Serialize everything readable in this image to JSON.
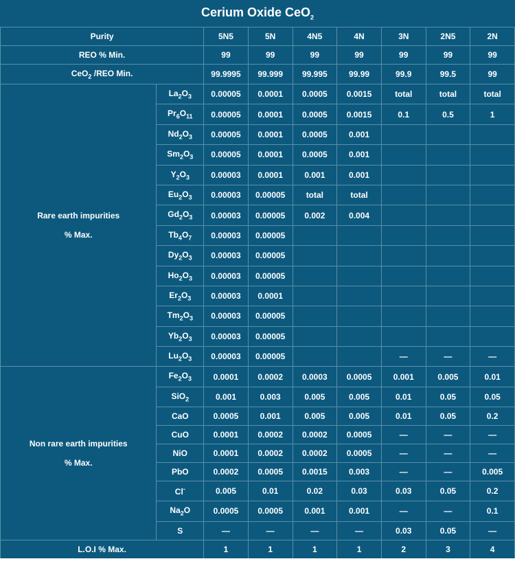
{
  "title_pre": "Cerium Oxide   CeO",
  "title_sub": "2",
  "headers": {
    "purity": "Purity",
    "reo": "REO % Min.",
    "ceo_reo_pre": "CeO",
    "ceo_reo_sub": "2",
    "ceo_reo_post": " /REO Min.",
    "rare": "Rare earth impurities",
    "rare2": "% Max.",
    "nonrare": "Non rare earth impurities",
    "nonrare2": "% Max.",
    "loi": "L.O.I % Max."
  },
  "grades": [
    "5N5",
    "5N",
    "4N5",
    "4N",
    "3N",
    "2N5",
    "2N"
  ],
  "reo_row": [
    "99",
    "99",
    "99",
    "99",
    "99",
    "99",
    "99"
  ],
  "ceo_row": [
    "99.9995",
    "99.999",
    "99.995",
    "99.99",
    "99.9",
    "99.5",
    "99"
  ],
  "rare_rows": [
    {
      "f": "La",
      "s": "2",
      "f2": "O",
      "s2": "3",
      "v": [
        "0.00005",
        "0.0001",
        "0.0005",
        "0.0015",
        "total",
        "total",
        "total"
      ]
    },
    {
      "f": "Pr",
      "s": "6",
      "f2": "O",
      "s2": "11",
      "v": [
        "0.00005",
        "0.0001",
        "0.0005",
        "0.0015",
        "0.1",
        "0.5",
        "1"
      ]
    },
    {
      "f": "Nd",
      "s": "2",
      "f2": "O",
      "s2": "3",
      "v": [
        "0.00005",
        "0.0001",
        "0.0005",
        "0.001",
        "",
        "",
        ""
      ]
    },
    {
      "f": "Sm",
      "s": "2",
      "f2": "O",
      "s2": "3",
      "v": [
        "0.00005",
        "0.0001",
        "0.0005",
        "0.001",
        "",
        "",
        ""
      ]
    },
    {
      "f": "Y",
      "s": "2",
      "f2": "O",
      "s2": "3",
      "v": [
        "0.00003",
        "0.0001",
        "0.001",
        "0.001",
        "",
        "",
        ""
      ]
    },
    {
      "f": "Eu",
      "s": "2",
      "f2": "O",
      "s2": "3",
      "v": [
        "0.00003",
        "0.00005",
        "total",
        "total",
        "",
        "",
        ""
      ]
    },
    {
      "f": "Gd",
      "s": "2",
      "f2": "O",
      "s2": "3",
      "v": [
        "0.00003",
        "0.00005",
        "0.002",
        "0.004",
        "",
        "",
        ""
      ]
    },
    {
      "f": "Tb",
      "s": "4",
      "f2": "O",
      "s2": "7",
      "v": [
        "0.00003",
        "0.00005",
        "",
        "",
        "",
        "",
        ""
      ]
    },
    {
      "f": "Dy",
      "s": "2",
      "f2": "O",
      "s2": "3",
      "v": [
        "0.00003",
        "0.00005",
        "",
        "",
        "",
        "",
        ""
      ]
    },
    {
      "f": "Ho",
      "s": "2",
      "f2": "O",
      "s2": "3",
      "v": [
        "0.00003",
        "0.00005",
        "",
        "",
        "",
        "",
        ""
      ]
    },
    {
      "f": "Er",
      "s": "2",
      "f2": "O",
      "s2": "3",
      "v": [
        "0.00003",
        "0.0001",
        "",
        "",
        "",
        "",
        ""
      ]
    },
    {
      "f": "Tm",
      "s": "2",
      "f2": "O",
      "s2": "3",
      "v": [
        "0.00003",
        "0.00005",
        "",
        "",
        "",
        "",
        ""
      ]
    },
    {
      "f": "Yb",
      "s": "2",
      "f2": "O",
      "s2": "3",
      "v": [
        "0.00003",
        "0.00005",
        "",
        "",
        "",
        "",
        ""
      ]
    },
    {
      "f": "Lu",
      "s": "2",
      "f2": "O",
      "s2": "3",
      "v": [
        "0.00003",
        "0.00005",
        "",
        "",
        "—",
        "—",
        "—"
      ]
    }
  ],
  "nonrare_rows": [
    {
      "f": "Fe",
      "s": "2",
      "f2": "O",
      "s2": "3",
      "v": [
        "0.0001",
        "0.0002",
        "0.0003",
        "0.0005",
        "0.001",
        "0.005",
        "0.01"
      ]
    },
    {
      "f": "SiO",
      "s": "2",
      "f2": "",
      "s2": "",
      "v": [
        "0.001",
        "0.003",
        "0.005",
        "0.005",
        "0.01",
        "0.05",
        "0.05"
      ]
    },
    {
      "f": "CaO",
      "s": "",
      "f2": "",
      "s2": "",
      "v": [
        "0.0005",
        "0.001",
        "0.005",
        "0.005",
        "0.01",
        "0.05",
        "0.2"
      ]
    },
    {
      "f": "CuO",
      "s": "",
      "f2": "",
      "s2": "",
      "v": [
        "0.0001",
        "0.0002",
        "0.0002",
        "0.0005",
        "—",
        "—",
        "—"
      ]
    },
    {
      "f": "NiO",
      "s": "",
      "f2": "",
      "s2": "",
      "v": [
        "0.0001",
        "0.0002",
        "0.0002",
        "0.0005",
        "—",
        "—",
        "—"
      ]
    },
    {
      "f": "PbO",
      "s": "",
      "f2": "",
      "s2": "",
      "v": [
        "0.0002",
        "0.0005",
        "0.0015",
        "0.003",
        "—",
        "—",
        "0.005"
      ]
    },
    {
      "f": "Cl",
      "s": "",
      "sup": "-",
      "f2": "",
      "s2": "",
      "v": [
        "0.005",
        "0.01",
        "0.02",
        "0.03",
        "0.03",
        "0.05",
        "0.2"
      ]
    },
    {
      "f": "Na",
      "s": "2",
      "f2": "O",
      "s2": "",
      "v": [
        "0.0005",
        "0.0005",
        "0.001",
        "0.001",
        "—",
        "—",
        "0.1"
      ]
    },
    {
      "f": "S",
      "s": "",
      "f2": "",
      "s2": "",
      "v": [
        "—",
        "—",
        "—",
        "—",
        "0.03",
        "0.05",
        "—"
      ]
    }
  ],
  "loi_row": [
    "1",
    "1",
    "1",
    "1",
    "2",
    "3",
    "4"
  ],
  "colors": {
    "bg": "#0d597e",
    "border": "#5a8fa8",
    "text": "#ffffff"
  }
}
